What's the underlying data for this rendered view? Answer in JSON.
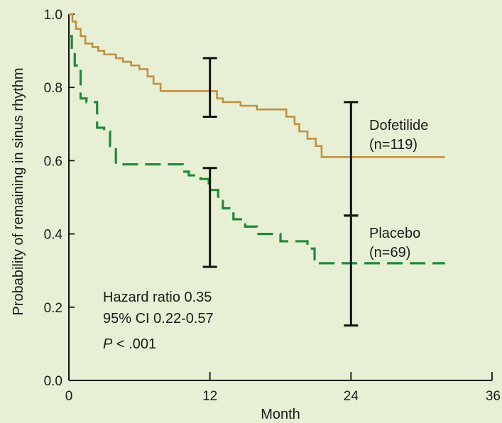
{
  "chart_data": {
    "type": "line",
    "title": "",
    "xlabel": "Month",
    "ylabel": "Probability of remaining in sinus rhythm",
    "xlim": [
      0,
      36
    ],
    "ylim": [
      0,
      1.0
    ],
    "xticks": [
      0,
      12,
      24,
      36
    ],
    "yticks": [
      0.0,
      0.2,
      0.4,
      0.6,
      0.8,
      1.0
    ],
    "xtick_labels": [
      "0",
      "12",
      "24",
      "36"
    ],
    "ytick_labels": [
      "0.0",
      "0.2",
      "0.4",
      "0.6",
      "0.8",
      "1.0"
    ],
    "grid": false,
    "series": [
      {
        "name": "Dofetilide",
        "n_label": "(n=119)",
        "color": "#c09040",
        "line_style": "solid",
        "x": [
          0,
          0.3,
          0.6,
          1.0,
          1.4,
          2.0,
          2.5,
          3.0,
          4.0,
          4.6,
          5.3,
          6.0,
          6.7,
          7.2,
          7.8,
          9.3,
          12.6,
          13.1,
          14.6,
          16.0,
          17.1,
          18.5,
          19.2,
          19.6,
          20.3,
          21.0,
          21.5,
          32
        ],
        "y": [
          1.0,
          0.98,
          0.96,
          0.94,
          0.92,
          0.91,
          0.9,
          0.89,
          0.88,
          0.87,
          0.86,
          0.85,
          0.83,
          0.81,
          0.79,
          0.79,
          0.77,
          0.76,
          0.75,
          0.74,
          0.74,
          0.72,
          0.7,
          0.68,
          0.66,
          0.64,
          0.61,
          0.61
        ],
        "error_bars": [
          {
            "x": 12,
            "y": 0.8,
            "low": 0.72,
            "high": 0.88
          },
          {
            "x": 24,
            "y": 0.61,
            "low": 0.45,
            "high": 0.76
          }
        ]
      },
      {
        "name": "Placebo",
        "n_label": "(n=69)",
        "color": "#1e8a38",
        "line_style": "dashed",
        "x": [
          0,
          0.25,
          0.5,
          1.0,
          1.5,
          2.4,
          3.0,
          3.5,
          4.0,
          8.2,
          9.7,
          10.2,
          11.2,
          11.9,
          12.7,
          13.1,
          14.0,
          15.0,
          16.0,
          18.0,
          20.3,
          20.9,
          32
        ],
        "y": [
          0.94,
          0.9,
          0.86,
          0.77,
          0.76,
          0.69,
          0.68,
          0.64,
          0.59,
          0.59,
          0.57,
          0.56,
          0.55,
          0.52,
          0.49,
          0.47,
          0.44,
          0.42,
          0.4,
          0.38,
          0.36,
          0.32,
          0.32
        ],
        "error_bars": [
          {
            "x": 12,
            "y": 0.46,
            "low": 0.31,
            "high": 0.58
          },
          {
            "x": 24,
            "y": 0.31,
            "low": 0.15,
            "high": 0.45
          }
        ]
      }
    ],
    "annotation": {
      "line1": "Hazard ratio  0.35",
      "line2": "95% CI  0.22-0.57",
      "line3_italic": "P",
      "line3_rest": " < .001"
    },
    "legend_placement": "inline-labels-right"
  }
}
